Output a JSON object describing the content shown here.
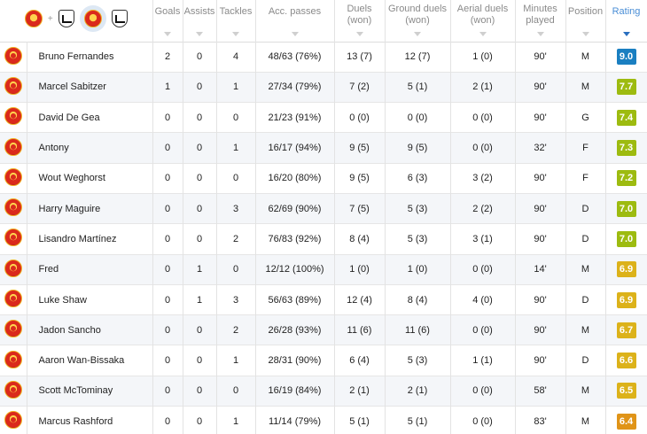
{
  "headers": {
    "goals": "Goals",
    "assists": "Assists",
    "tackles": "Tackles",
    "acc_passes": "Acc. passes",
    "duels_l1": "Duels",
    "duels_l2": "(won)",
    "ground_l1": "Ground duels",
    "ground_l2": "(won)",
    "aerial_l1": "Aerial duels",
    "aerial_l2": "(won)",
    "minutes_l1": "Minutes",
    "minutes_l2": "played",
    "position": "Position",
    "rating": "Rating",
    "plus": "+"
  },
  "icons": {
    "team_crest": "manchester-united-crest-icon",
    "opponent_crest": "fulham-crest-icon"
  },
  "rating_colors": {
    "9.0": "#1a7fc1",
    "7.7": "#9dbb10",
    "7.4": "#9dbb10",
    "7.3": "#9dbb10",
    "7.2": "#9dbb10",
    "7.0": "#9dbb10",
    "6.9": "#dcb21a",
    "6.7": "#dcb21a",
    "6.6": "#dcb21a",
    "6.5": "#dcb21a",
    "6.4": "#e09418"
  },
  "players": [
    {
      "name": "Bruno Fernandes",
      "goals": "2",
      "assists": "0",
      "tackles": "4",
      "acc_passes": "48/63 (76%)",
      "duels": "13 (7)",
      "ground_duels": "12 (7)",
      "aerial_duels": "1 (0)",
      "minutes": "90'",
      "position": "M",
      "rating": "9.0"
    },
    {
      "name": "Marcel Sabitzer",
      "goals": "1",
      "assists": "0",
      "tackles": "1",
      "acc_passes": "27/34 (79%)",
      "duels": "7 (2)",
      "ground_duels": "5 (1)",
      "aerial_duels": "2 (1)",
      "minutes": "90'",
      "position": "M",
      "rating": "7.7"
    },
    {
      "name": "David De Gea",
      "goals": "0",
      "assists": "0",
      "tackles": "0",
      "acc_passes": "21/23 (91%)",
      "duels": "0 (0)",
      "ground_duels": "0 (0)",
      "aerial_duels": "0 (0)",
      "minutes": "90'",
      "position": "G",
      "rating": "7.4"
    },
    {
      "name": "Antony",
      "goals": "0",
      "assists": "0",
      "tackles": "1",
      "acc_passes": "16/17 (94%)",
      "duels": "9 (5)",
      "ground_duels": "9 (5)",
      "aerial_duels": "0 (0)",
      "minutes": "32'",
      "position": "F",
      "rating": "7.3"
    },
    {
      "name": "Wout Weghorst",
      "goals": "0",
      "assists": "0",
      "tackles": "0",
      "acc_passes": "16/20 (80%)",
      "duels": "9 (5)",
      "ground_duels": "6 (3)",
      "aerial_duels": "3 (2)",
      "minutes": "90'",
      "position": "F",
      "rating": "7.2"
    },
    {
      "name": "Harry Maguire",
      "goals": "0",
      "assists": "0",
      "tackles": "3",
      "acc_passes": "62/69 (90%)",
      "duels": "7 (5)",
      "ground_duels": "5 (3)",
      "aerial_duels": "2 (2)",
      "minutes": "90'",
      "position": "D",
      "rating": "7.0"
    },
    {
      "name": "Lisandro Martínez",
      "goals": "0",
      "assists": "0",
      "tackles": "2",
      "acc_passes": "76/83 (92%)",
      "duels": "8 (4)",
      "ground_duels": "5 (3)",
      "aerial_duels": "3 (1)",
      "minutes": "90'",
      "position": "D",
      "rating": "7.0"
    },
    {
      "name": "Fred",
      "goals": "0",
      "assists": "1",
      "tackles": "0",
      "acc_passes": "12/12 (100%)",
      "duels": "1 (0)",
      "ground_duels": "1 (0)",
      "aerial_duels": "0 (0)",
      "minutes": "14'",
      "position": "M",
      "rating": "6.9"
    },
    {
      "name": "Luke Shaw",
      "goals": "0",
      "assists": "1",
      "tackles": "3",
      "acc_passes": "56/63 (89%)",
      "duels": "12 (4)",
      "ground_duels": "8 (4)",
      "aerial_duels": "4 (0)",
      "minutes": "90'",
      "position": "D",
      "rating": "6.9"
    },
    {
      "name": "Jadon Sancho",
      "goals": "0",
      "assists": "0",
      "tackles": "2",
      "acc_passes": "26/28 (93%)",
      "duels": "11 (6)",
      "ground_duels": "11 (6)",
      "aerial_duels": "0 (0)",
      "minutes": "90'",
      "position": "M",
      "rating": "6.7"
    },
    {
      "name": "Aaron Wan-Bissaka",
      "goals": "0",
      "assists": "0",
      "tackles": "1",
      "acc_passes": "28/31 (90%)",
      "duels": "6 (4)",
      "ground_duels": "5 (3)",
      "aerial_duels": "1 (1)",
      "minutes": "90'",
      "position": "D",
      "rating": "6.6"
    },
    {
      "name": "Scott McTominay",
      "goals": "0",
      "assists": "0",
      "tackles": "0",
      "acc_passes": "16/19 (84%)",
      "duels": "2 (1)",
      "ground_duels": "2 (1)",
      "aerial_duels": "0 (0)",
      "minutes": "58'",
      "position": "M",
      "rating": "6.5"
    },
    {
      "name": "Marcus Rashford",
      "goals": "0",
      "assists": "0",
      "tackles": "1",
      "acc_passes": "11/14 (79%)",
      "duels": "5 (1)",
      "ground_duels": "5 (1)",
      "aerial_duels": "0 (0)",
      "minutes": "83'",
      "position": "M",
      "rating": "6.4"
    }
  ]
}
